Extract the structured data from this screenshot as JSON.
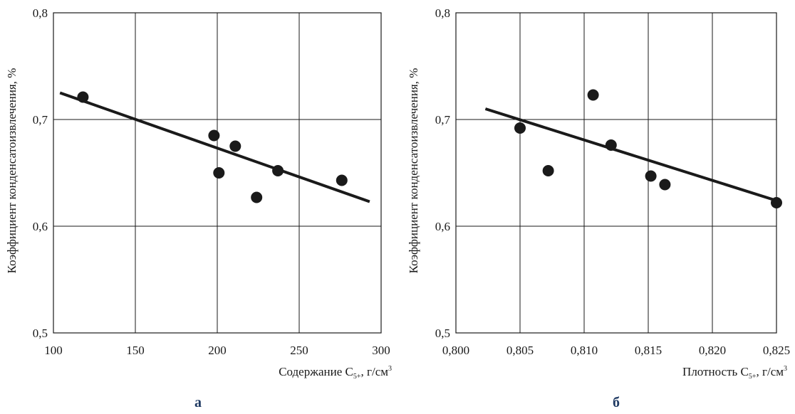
{
  "chart_data": [
    {
      "type": "scatter",
      "panel_label": "а",
      "xlabel_main": "Содержание C",
      "xlabel_sub": "5+",
      "xlabel_unit": ", г/см",
      "xlabel_sup": "3",
      "ylabel": "Коэффициент конденсатоизвлечения, %",
      "xlim": [
        100,
        300
      ],
      "ylim": [
        0.5,
        0.8
      ],
      "x_ticks": [
        100,
        150,
        200,
        250,
        300
      ],
      "x_tick_labels": [
        "100",
        "150",
        "200",
        "250",
        "300"
      ],
      "y_ticks": [
        0.5,
        0.6,
        0.7,
        0.8
      ],
      "y_tick_labels": [
        "0,5",
        "0,6",
        "0,7",
        "0,8"
      ],
      "grid": true,
      "points": [
        {
          "x": 118,
          "y": 0.721
        },
        {
          "x": 198,
          "y": 0.685
        },
        {
          "x": 201,
          "y": 0.65
        },
        {
          "x": 211,
          "y": 0.675
        },
        {
          "x": 224,
          "y": 0.627
        },
        {
          "x": 237,
          "y": 0.652
        },
        {
          "x": 276,
          "y": 0.643
        }
      ],
      "trendline": [
        {
          "x": 104,
          "y": 0.725
        },
        {
          "x": 293,
          "y": 0.623
        }
      ]
    },
    {
      "type": "scatter",
      "panel_label": "б",
      "xlabel_main": "Плотность C",
      "xlabel_sub": "5+",
      "xlabel_unit": ", г/см",
      "xlabel_sup": "3",
      "ylabel": "Коэффициент конденсатоизвлечения, %",
      "xlim": [
        0.8,
        0.825
      ],
      "ylim": [
        0.5,
        0.8
      ],
      "x_ticks": [
        0.8,
        0.805,
        0.81,
        0.815,
        0.82,
        0.825
      ],
      "x_tick_labels": [
        "0,800",
        "0,805",
        "0,810",
        "0,815",
        "0,820",
        "0,825"
      ],
      "y_ticks": [
        0.5,
        0.6,
        0.7,
        0.8
      ],
      "y_tick_labels": [
        "0,5",
        "0,6",
        "0,7",
        "0,8"
      ],
      "grid": true,
      "points": [
        {
          "x": 0.805,
          "y": 0.692
        },
        {
          "x": 0.8072,
          "y": 0.652
        },
        {
          "x": 0.8107,
          "y": 0.723
        },
        {
          "x": 0.8121,
          "y": 0.676
        },
        {
          "x": 0.8152,
          "y": 0.647
        },
        {
          "x": 0.8163,
          "y": 0.639
        },
        {
          "x": 0.825,
          "y": 0.622
        }
      ],
      "trendline": [
        {
          "x": 0.8023,
          "y": 0.71
        },
        {
          "x": 0.825,
          "y": 0.624
        }
      ]
    }
  ]
}
